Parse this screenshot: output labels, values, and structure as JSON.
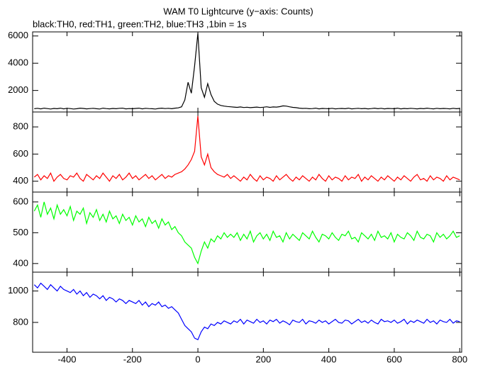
{
  "chart_data": {
    "type": "line",
    "title": "WAM T0 Lightcurve (y−axis: Counts)",
    "subtitle": "black:TH0, red:TH1, green:TH2, blue:TH3 ,1bin = 1s",
    "xlim": [
      -505,
      806
    ],
    "xticks": [
      -400,
      -200,
      0,
      200,
      400,
      600,
      800
    ],
    "x": [
      -500,
      -490,
      -480,
      -470,
      -460,
      -450,
      -440,
      -430,
      -420,
      -410,
      -400,
      -390,
      -380,
      -370,
      -360,
      -350,
      -340,
      -330,
      -320,
      -310,
      -300,
      -290,
      -280,
      -270,
      -260,
      -250,
      -240,
      -230,
      -220,
      -210,
      -200,
      -190,
      -180,
      -170,
      -160,
      -150,
      -140,
      -130,
      -120,
      -110,
      -100,
      -90,
      -80,
      -70,
      -60,
      -50,
      -40,
      -30,
      -20,
      -10,
      0,
      10,
      20,
      30,
      40,
      50,
      60,
      70,
      80,
      90,
      100,
      110,
      120,
      130,
      140,
      150,
      160,
      170,
      180,
      190,
      200,
      210,
      220,
      230,
      240,
      250,
      260,
      270,
      280,
      290,
      300,
      310,
      320,
      330,
      340,
      350,
      360,
      370,
      380,
      390,
      400,
      410,
      420,
      430,
      440,
      450,
      460,
      470,
      480,
      490,
      500,
      510,
      520,
      530,
      540,
      550,
      560,
      570,
      580,
      590,
      600,
      610,
      620,
      630,
      640,
      650,
      660,
      670,
      680,
      690,
      700,
      710,
      720,
      730,
      740,
      750,
      760,
      770,
      780,
      790,
      800
    ],
    "series": [
      {
        "color": "#000000",
        "ylim": [
          420,
          6300
        ],
        "yticks": [
          2000,
          4000,
          6000
        ],
        "values": [
          660,
          690,
          650,
          700,
          670,
          640,
          680,
          660,
          700,
          650,
          690,
          670,
          640,
          660,
          700,
          680,
          650,
          670,
          690,
          660,
          640,
          700,
          670,
          650,
          680,
          660,
          690,
          700,
          650,
          670,
          660,
          680,
          700,
          650,
          690,
          670,
          660,
          640,
          680,
          700,
          670,
          690,
          660,
          700,
          720,
          800,
          1300,
          2600,
          1800,
          3800,
          6200,
          2200,
          1500,
          2500,
          1700,
          1200,
          1000,
          900,
          850,
          820,
          800,
          780,
          760,
          790,
          750,
          770,
          740,
          760,
          780,
          750,
          770,
          800,
          760,
          790,
          780,
          810,
          870,
          850,
          800,
          760,
          740,
          700,
          680,
          690,
          660,
          670,
          700,
          650,
          680,
          670,
          660,
          690,
          650,
          670,
          680,
          660,
          700,
          650,
          670,
          690,
          660,
          680,
          650,
          670,
          700,
          660,
          690,
          650,
          680,
          670,
          660,
          700,
          650,
          680,
          660,
          690,
          670,
          650,
          680,
          660,
          700,
          670,
          650,
          690,
          660,
          680,
          670,
          650,
          690,
          660,
          680
        ]
      },
      {
        "color": "#ff0000",
        "ylim": [
          320,
          910
        ],
        "yticks": [
          400,
          600,
          800
        ],
        "values": [
          430,
          450,
          410,
          440,
          420,
          460,
          400,
          430,
          450,
          420,
          410,
          440,
          430,
          460,
          420,
          400,
          450,
          430,
          410,
          440,
          420,
          460,
          430,
          400,
          440,
          420,
          450,
          410,
          430,
          460,
          420,
          440,
          410,
          430,
          450,
          420,
          440,
          410,
          430,
          450,
          420,
          440,
          430,
          450,
          460,
          470,
          490,
          520,
          560,
          620,
          880,
          580,
          520,
          600,
          500,
          470,
          450,
          440,
          430,
          450,
          420,
          440,
          420,
          400,
          430,
          410,
          450,
          420,
          400,
          440,
          410,
          430,
          420,
          400,
          440,
          410,
          430,
          450,
          420,
          400,
          430,
          410,
          440,
          420,
          400,
          430,
          410,
          450,
          420,
          400,
          440,
          410,
          430,
          420,
          400,
          440,
          410,
          430,
          420,
          450,
          400,
          430,
          410,
          440,
          420,
          400,
          430,
          410,
          440,
          420,
          400,
          430,
          410,
          440,
          420,
          400,
          430,
          450,
          410,
          420,
          400,
          440,
          410,
          430,
          420,
          400,
          440,
          410,
          430,
          420,
          410
        ]
      },
      {
        "color": "#00ff00",
        "ylim": [
          372,
          632
        ],
        "yticks": [
          400,
          500,
          600
        ],
        "values": [
          570,
          590,
          550,
          600,
          560,
          580,
          545,
          590,
          560,
          575,
          555,
          585,
          540,
          570,
          560,
          580,
          530,
          565,
          550,
          575,
          540,
          560,
          535,
          570,
          545,
          555,
          530,
          560,
          540,
          550,
          525,
          555,
          535,
          545,
          520,
          550,
          530,
          540,
          515,
          545,
          525,
          535,
          510,
          520,
          500,
          490,
          470,
          460,
          450,
          420,
          400,
          440,
          470,
          450,
          480,
          470,
          490,
          480,
          500,
          485,
          495,
          485,
          500,
          475,
          495,
          480,
          505,
          470,
          490,
          500,
          480,
          495,
          475,
          505,
          485,
          490,
          470,
          500,
          480,
          495,
          485,
          475,
          500,
          490,
          480,
          505,
          485,
          470,
          495,
          490,
          480,
          500,
          485,
          475,
          495,
          490,
          505,
          480,
          485,
          470,
          500,
          490,
          480,
          495,
          475,
          505,
          485,
          490,
          480,
          500,
          470,
          495,
          485,
          480,
          500,
          490,
          475,
          505,
          485,
          480,
          495,
          490,
          470,
          500,
          485,
          495,
          480,
          490,
          505,
          485,
          490
        ]
      },
      {
        "color": "#0000ff",
        "ylim": [
          610,
          1120
        ],
        "yticks": [
          800,
          1000
        ],
        "values": [
          1040,
          1020,
          1050,
          1030,
          1010,
          1040,
          1020,
          1000,
          1030,
          1010,
          1000,
          990,
          1010,
          980,
          1000,
          970,
          990,
          960,
          980,
          970,
          950,
          970,
          940,
          960,
          950,
          930,
          950,
          940,
          920,
          940,
          930,
          920,
          940,
          910,
          930,
          900,
          920,
          910,
          930,
          900,
          910,
          890,
          900,
          880,
          860,
          820,
          780,
          760,
          740,
          700,
          690,
          740,
          770,
          760,
          790,
          780,
          800,
          790,
          810,
          800,
          790,
          810,
          800,
          820,
          790,
          815,
          805,
          795,
          820,
          800,
          810,
          790,
          815,
          805,
          820,
          795,
          810,
          800,
          785,
          815,
          805,
          800,
          820,
          790,
          810,
          805,
          795,
          815,
          800,
          810,
          790,
          805,
          820,
          800,
          795,
          815,
          810,
          790,
          805,
          820,
          800,
          810,
          795,
          815,
          800,
          790,
          820,
          805,
          810,
          800,
          815,
          795,
          805,
          820,
          790,
          810,
          800,
          815,
          805,
          795,
          820,
          800,
          810,
          790,
          815,
          805,
          800,
          820,
          795,
          810,
          805
        ]
      }
    ]
  }
}
